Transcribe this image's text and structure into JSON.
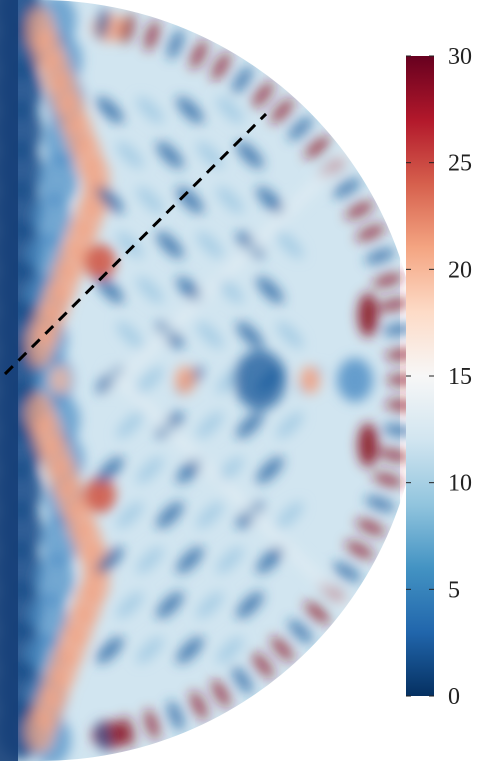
{
  "colorbar": {
    "min": 0,
    "max": 30,
    "ticks": [
      "0",
      "5",
      "10",
      "15",
      "20",
      "25",
      "30"
    ],
    "colormap": "RdBu_r",
    "stops": [
      "#053061",
      "#2166ac",
      "#4393c3",
      "#92c5de",
      "#d1e5f0",
      "#f7f7f7",
      "#fddbc7",
      "#f4a582",
      "#d6604d",
      "#b2182b",
      "#67001f"
    ]
  },
  "field": {
    "shape": "half-disk",
    "dashed_line": true
  }
}
